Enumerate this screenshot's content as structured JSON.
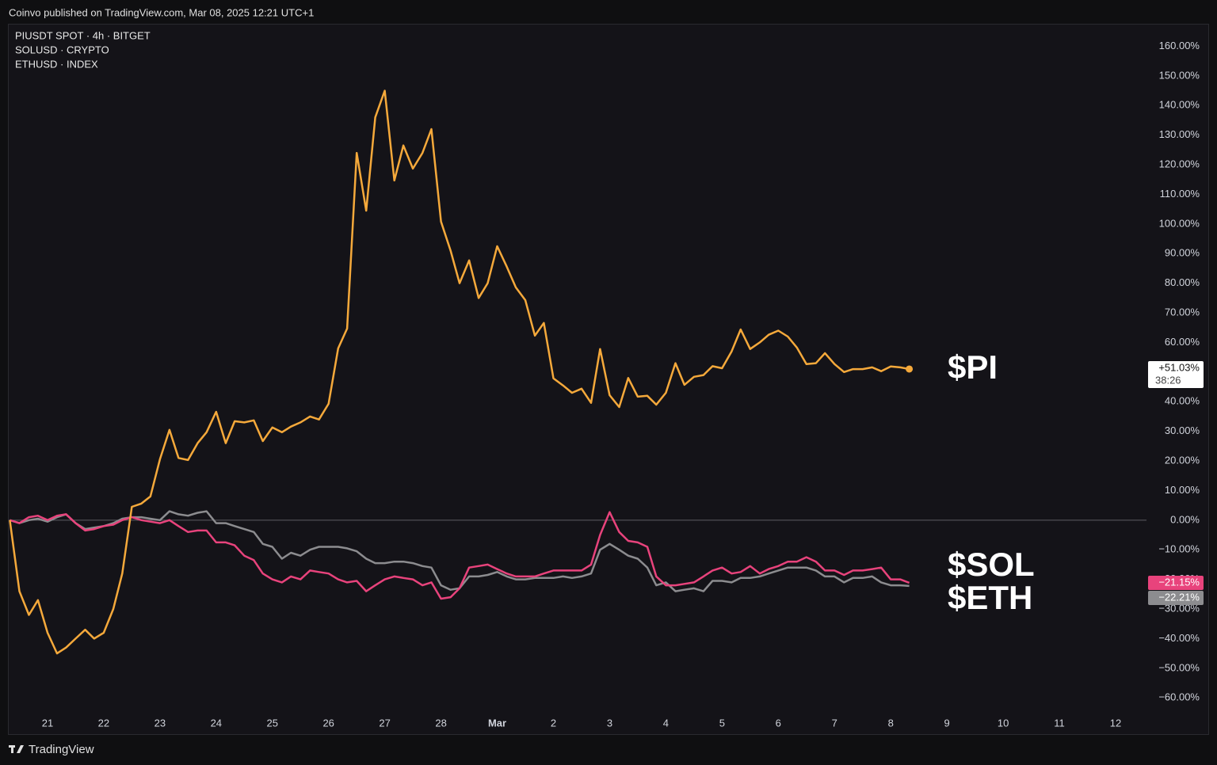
{
  "header": "Coinvo published on TradingView.com, Mar 08, 2025 12:21 UTC+1",
  "footer": "TradingView",
  "chart_data": {
    "type": "line",
    "x": [
      20.33,
      20.5,
      20.67,
      20.83,
      21,
      21.17,
      21.33,
      21.5,
      21.67,
      21.83,
      22,
      22.17,
      22.33,
      22.5,
      22.67,
      22.83,
      23,
      23.17,
      23.33,
      23.5,
      23.67,
      23.83,
      24,
      24.17,
      24.33,
      24.5,
      24.67,
      24.83,
      25,
      25.17,
      25.33,
      25.5,
      25.67,
      25.83,
      26,
      26.17,
      26.33,
      26.5,
      26.67,
      26.83,
      27,
      27.17,
      27.33,
      27.5,
      27.67,
      27.83,
      28,
      28.17,
      28.33,
      28.5,
      28.67,
      28.83,
      29,
      29.17,
      29.33,
      29.5,
      29.67,
      29.83,
      30,
      30.17,
      30.33,
      30.5,
      30.67,
      30.83,
      31,
      31.17,
      31.33,
      31.5,
      31.67,
      31.83,
      32,
      32.17,
      32.33,
      32.5,
      32.67,
      32.83,
      33,
      33.17,
      33.33,
      33.5,
      33.67,
      33.83,
      34,
      34.17,
      34.33,
      34.5,
      34.67,
      34.83,
      35,
      35.17,
      35.33,
      35.5,
      35.67,
      35.83,
      36,
      36.17,
      36.33
    ],
    "series": [
      {
        "name": "PIUSDT SPOT · 4h · BITGET",
        "annotation": "$PI",
        "color": "#f5a93b",
        "last_label": "+51.03%",
        "countdown": "38:26",
        "values": [
          0,
          -24,
          -32,
          -27,
          -38,
          -45,
          -43,
          -40,
          -37,
          -40,
          -38,
          -30,
          -18,
          4.5,
          5.6,
          8,
          20.6,
          30.5,
          21,
          20.3,
          26,
          29.7,
          36.6,
          26,
          33.4,
          33,
          33.7,
          26.7,
          31.3,
          29.7,
          31.6,
          33,
          35,
          34,
          39.3,
          58,
          64.7,
          124,
          104.5,
          136,
          145,
          114.7,
          126.5,
          118.7,
          124,
          132,
          100.8,
          91,
          80,
          87.7,
          75,
          80,
          92.5,
          85.6,
          78.6,
          74.3,
          62.3,
          66.6,
          47.9,
          45.5,
          43,
          44.4,
          39.6,
          57.8,
          42.2,
          38.2,
          48,
          41.7,
          42,
          39,
          43,
          53,
          45.7,
          48.4,
          49,
          52,
          51.3,
          57,
          64.4,
          57.8,
          60,
          62.6,
          64,
          62,
          58.3,
          52.7,
          53,
          56.4,
          52.7,
          50,
          51,
          51,
          51.6,
          50.3,
          51.9,
          51.6,
          51.03
        ]
      },
      {
        "name": "SOLUSD · CRYPTO",
        "annotation": "$SOL",
        "color": "#e8437c",
        "last_label": "−21.15%",
        "values": [
          0,
          -1,
          1,
          1.5,
          0,
          1.5,
          2,
          -1,
          -3.5,
          -3,
          -2,
          -1.5,
          0,
          1,
          0,
          -0.5,
          -1,
          0,
          -2,
          -4,
          -3.5,
          -3.5,
          -7.5,
          -7.5,
          -8.5,
          -12,
          -13.5,
          -18,
          -20,
          -21,
          -19,
          -20,
          -17,
          -17.5,
          -18,
          -20,
          -21,
          -20.5,
          -24,
          -22,
          -20,
          -19,
          -19.5,
          -20,
          -22,
          -21,
          -26.5,
          -26,
          -23,
          -16,
          -15.5,
          -15,
          -16.5,
          -18,
          -19,
          -19,
          -19,
          -18,
          -17,
          -17,
          -17,
          -17,
          -15,
          -5,
          2.7,
          -4,
          -7,
          -7.5,
          -9,
          -19,
          -22,
          -22,
          -21.5,
          -21,
          -19,
          -17,
          -16,
          -18,
          -17.5,
          -15.5,
          -18,
          -16.5,
          -15.5,
          -14,
          -14,
          -12.5,
          -14,
          -17,
          -17,
          -18.5,
          -17,
          -17,
          -16.5,
          -16,
          -20,
          -20,
          -21.15
        ]
      },
      {
        "name": "ETHUSD · INDEX",
        "annotation": "$ETH",
        "color": "#8c8c8f",
        "last_label": "−22.21%",
        "values": [
          0,
          -1,
          0,
          0.5,
          -0.5,
          1,
          2,
          -1,
          -3,
          -2.5,
          -2,
          -1,
          0.5,
          1,
          1,
          0.5,
          0,
          3,
          2,
          1.5,
          2.5,
          3,
          -1,
          -1,
          -2,
          -3,
          -4,
          -8,
          -9,
          -13,
          -11,
          -12,
          -10,
          -9,
          -9,
          -9,
          -9.5,
          -10.5,
          -13,
          -14.5,
          -14.5,
          -14,
          -14,
          -14.5,
          -15.5,
          -16,
          -22,
          -23.5,
          -23,
          -19,
          -19,
          -18.5,
          -17.5,
          -19,
          -20,
          -20,
          -19.5,
          -19.5,
          -19.5,
          -19,
          -19.5,
          -19,
          -18,
          -10,
          -8,
          -10,
          -12,
          -13,
          -16,
          -22,
          -21,
          -24,
          -23.5,
          -23,
          -24,
          -20.5,
          -20.5,
          -21,
          -19.5,
          -19.5,
          -19,
          -18,
          -17,
          -16,
          -16,
          -16,
          -17,
          -19,
          -19,
          -21,
          -19.5,
          -19.5,
          -19,
          -21,
          -22,
          -22,
          -22.21
        ]
      }
    ],
    "xlim": [
      20.31,
      40.55
    ],
    "xticks": [
      21,
      22,
      23,
      24,
      25,
      26,
      27,
      28,
      {
        "value": 29,
        "label": "Mar"
      },
      {
        "value": 30,
        "label": "2"
      },
      {
        "value": 31,
        "label": "3"
      },
      {
        "value": 32,
        "label": "4"
      },
      {
        "value": 33,
        "label": "5"
      },
      {
        "value": 34,
        "label": "6"
      },
      {
        "value": 35,
        "label": "7"
      },
      {
        "value": 36,
        "label": "8"
      },
      {
        "value": 37,
        "label": "9"
      },
      {
        "value": 38,
        "label": "10"
      },
      {
        "value": 39,
        "label": "11"
      },
      {
        "value": 40,
        "label": "12"
      }
    ],
    "ylim": [
      -72.5,
      167.6
    ],
    "yticks": [
      {
        "value": -60,
        "label": "−60.00%"
      },
      {
        "value": -50,
        "label": "−50.00%"
      },
      {
        "value": -40,
        "label": "−40.00%"
      },
      {
        "value": -30,
        "label": "−30.00%"
      },
      {
        "value": -20,
        "label": "−20.00%"
      },
      {
        "value": -10,
        "label": "−10.00%"
      },
      {
        "value": 0,
        "label": "0.00%"
      },
      {
        "value": 10,
        "label": "10.00%"
      },
      {
        "value": 20,
        "label": "20.00%"
      },
      {
        "value": 30,
        "label": "30.00%"
      },
      {
        "value": 40,
        "label": "40.00%"
      },
      {
        "value": 50,
        "label": "50.00%"
      },
      {
        "value": 60,
        "label": "60.00%"
      },
      {
        "value": 70,
        "label": "70.00%"
      },
      {
        "value": 80,
        "label": "80.00%"
      },
      {
        "value": 90,
        "label": "90.00%"
      },
      {
        "value": 100,
        "label": "100.00%"
      },
      {
        "value": 110,
        "label": "110.00%"
      },
      {
        "value": 120,
        "label": "120.00%"
      },
      {
        "value": 130,
        "label": "130.00%"
      },
      {
        "value": 140,
        "label": "140.00%"
      },
      {
        "value": 150,
        "label": "150.00%"
      },
      {
        "value": 160,
        "label": "160.00%"
      }
    ],
    "zero_line": true,
    "grid": false
  }
}
